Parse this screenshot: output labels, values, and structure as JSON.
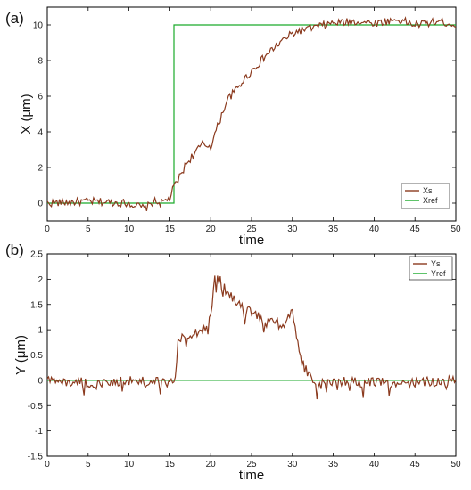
{
  "chart_data": [
    {
      "type": "line",
      "panel_label": "(a)",
      "xlabel": "time",
      "ylabel": "X (μm)",
      "xlim": [
        0,
        50
      ],
      "ylim": [
        -1,
        11
      ],
      "xticks": [
        0,
        5,
        10,
        15,
        20,
        25,
        30,
        35,
        40,
        45,
        50
      ],
      "yticks": [
        0,
        2,
        4,
        6,
        8,
        10
      ],
      "grid": false,
      "legend_position": "bottom-right",
      "series": [
        {
          "name": "Xs",
          "color": "#8b3a1e",
          "noise": 0.22,
          "x": [
            0,
            5,
            10,
            12,
            13,
            14,
            15,
            15.5,
            16,
            17,
            18,
            19,
            20,
            21,
            22,
            23,
            24,
            25,
            26,
            27,
            28,
            29,
            30,
            31,
            32,
            33,
            34,
            35,
            38,
            40,
            43,
            45,
            48,
            50
          ],
          "y": [
            0,
            0.1,
            0,
            -0.3,
            0.1,
            0,
            0.3,
            0.9,
            1.3,
            2.2,
            2.8,
            3.3,
            3.2,
            4.5,
            5.8,
            6.3,
            6.9,
            7.4,
            7.9,
            8.4,
            8.8,
            9.2,
            9.5,
            9.7,
            9.8,
            9.9,
            10.0,
            10.1,
            10.2,
            10.1,
            10.3,
            10.0,
            10.2,
            10.0
          ]
        },
        {
          "name": "Xref",
          "color": "#1aaa2a",
          "noise": 0,
          "x": [
            0,
            15.5,
            15.5,
            50
          ],
          "y": [
            0,
            0,
            10,
            10
          ]
        }
      ]
    },
    {
      "type": "line",
      "panel_label": "(b)",
      "xlabel": "time",
      "ylabel": "Y (μm)",
      "xlim": [
        0,
        50
      ],
      "ylim": [
        -1.5,
        2.5
      ],
      "xticks": [
        0,
        5,
        10,
        15,
        20,
        25,
        30,
        35,
        40,
        45,
        50
      ],
      "yticks": [
        -1.5,
        -1,
        -0.5,
        0,
        0.5,
        1,
        1.5,
        2,
        2.5
      ],
      "grid": false,
      "legend_position": "top-right",
      "series": [
        {
          "name": "Ys",
          "color": "#8b3a1e",
          "noise": 0.1,
          "x": [
            0,
            5,
            10,
            15,
            15.7,
            16,
            17,
            18,
            19,
            20,
            20.5,
            21,
            22,
            23,
            24,
            25,
            26,
            27,
            28,
            29,
            29.5,
            30,
            31,
            32,
            33,
            35,
            40,
            45,
            50
          ],
          "y": [
            0,
            -0.05,
            0,
            -0.05,
            0,
            0.85,
            0.9,
            0.95,
            1.0,
            1.2,
            2.0,
            2.0,
            1.75,
            1.55,
            1.4,
            1.35,
            1.25,
            1.2,
            1.15,
            1.1,
            1.35,
            1.3,
            0.4,
            0.1,
            -0.1,
            0,
            -0.05,
            -0.05,
            0
          ]
        },
        {
          "name": "Yref",
          "color": "#1aaa2a",
          "noise": 0,
          "x": [
            0,
            50
          ],
          "y": [
            0,
            0
          ]
        }
      ]
    }
  ]
}
